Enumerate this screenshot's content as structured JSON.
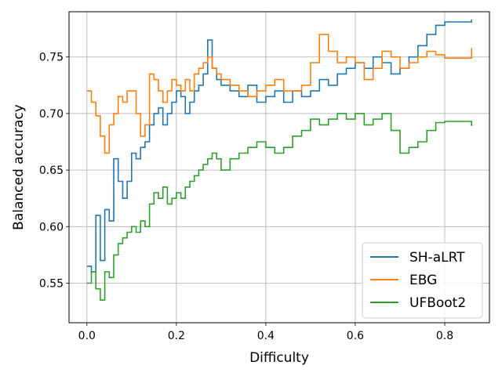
{
  "chart_data": {
    "type": "line",
    "title": "",
    "xlabel": "Difficulty",
    "ylabel": "Balanced accuracy",
    "xlim": [
      -0.04,
      0.9
    ],
    "ylim": [
      0.515,
      0.79
    ],
    "x_ticks": [
      0.0,
      0.2,
      0.4,
      0.6,
      0.8
    ],
    "x_tick_labels": [
      "0.0",
      "0.2",
      "0.4",
      "0.6",
      "0.8"
    ],
    "y_ticks": [
      0.55,
      0.6,
      0.65,
      0.7,
      0.75
    ],
    "y_tick_labels": [
      "0.55",
      "0.60",
      "0.65",
      "0.70",
      "0.75"
    ],
    "grid": true,
    "legend_position": "bottom-right",
    "series": [
      {
        "name": "SH-aLRT",
        "color": "#1f77b4",
        "x": [
          0.0,
          0.01,
          0.02,
          0.03,
          0.04,
          0.05,
          0.06,
          0.07,
          0.08,
          0.09,
          0.1,
          0.11,
          0.12,
          0.13,
          0.14,
          0.15,
          0.16,
          0.17,
          0.18,
          0.19,
          0.2,
          0.21,
          0.22,
          0.23,
          0.24,
          0.25,
          0.26,
          0.27,
          0.28,
          0.29,
          0.3,
          0.32,
          0.34,
          0.36,
          0.38,
          0.4,
          0.42,
          0.44,
          0.46,
          0.48,
          0.5,
          0.52,
          0.54,
          0.56,
          0.58,
          0.6,
          0.62,
          0.64,
          0.66,
          0.68,
          0.7,
          0.72,
          0.74,
          0.76,
          0.78,
          0.8,
          0.86
        ],
        "y": [
          0.565,
          0.56,
          0.61,
          0.57,
          0.615,
          0.605,
          0.66,
          0.64,
          0.625,
          0.64,
          0.665,
          0.66,
          0.67,
          0.675,
          0.69,
          0.7,
          0.705,
          0.69,
          0.7,
          0.71,
          0.72,
          0.715,
          0.7,
          0.71,
          0.72,
          0.725,
          0.735,
          0.765,
          0.74,
          0.73,
          0.725,
          0.72,
          0.715,
          0.725,
          0.71,
          0.715,
          0.72,
          0.71,
          0.72,
          0.715,
          0.72,
          0.73,
          0.725,
          0.735,
          0.74,
          0.745,
          0.74,
          0.75,
          0.745,
          0.735,
          0.74,
          0.75,
          0.76,
          0.77,
          0.778,
          0.781,
          0.783
        ]
      },
      {
        "name": "EBG",
        "color": "#ff7f0e",
        "x": [
          0.0,
          0.01,
          0.02,
          0.03,
          0.04,
          0.05,
          0.06,
          0.07,
          0.08,
          0.09,
          0.1,
          0.11,
          0.12,
          0.13,
          0.14,
          0.15,
          0.16,
          0.17,
          0.18,
          0.19,
          0.2,
          0.21,
          0.22,
          0.23,
          0.24,
          0.25,
          0.26,
          0.27,
          0.28,
          0.29,
          0.3,
          0.32,
          0.34,
          0.36,
          0.38,
          0.4,
          0.42,
          0.44,
          0.46,
          0.48,
          0.5,
          0.52,
          0.54,
          0.56,
          0.58,
          0.6,
          0.62,
          0.64,
          0.66,
          0.68,
          0.7,
          0.72,
          0.74,
          0.76,
          0.78,
          0.8,
          0.86
        ],
        "y": [
          0.72,
          0.71,
          0.698,
          0.68,
          0.665,
          0.69,
          0.7,
          0.715,
          0.71,
          0.72,
          0.72,
          0.7,
          0.68,
          0.69,
          0.735,
          0.73,
          0.72,
          0.71,
          0.72,
          0.73,
          0.725,
          0.72,
          0.73,
          0.72,
          0.735,
          0.74,
          0.745,
          0.75,
          0.74,
          0.735,
          0.73,
          0.725,
          0.72,
          0.715,
          0.72,
          0.725,
          0.73,
          0.72,
          0.72,
          0.725,
          0.745,
          0.77,
          0.755,
          0.745,
          0.75,
          0.745,
          0.73,
          0.74,
          0.755,
          0.75,
          0.74,
          0.745,
          0.75,
          0.755,
          0.752,
          0.749,
          0.758
        ]
      },
      {
        "name": "UFBoot2",
        "color": "#2ca02c",
        "x": [
          0.0,
          0.01,
          0.02,
          0.03,
          0.04,
          0.05,
          0.06,
          0.07,
          0.08,
          0.09,
          0.1,
          0.11,
          0.12,
          0.13,
          0.14,
          0.15,
          0.16,
          0.17,
          0.18,
          0.19,
          0.2,
          0.21,
          0.22,
          0.23,
          0.24,
          0.25,
          0.26,
          0.27,
          0.28,
          0.29,
          0.3,
          0.32,
          0.34,
          0.36,
          0.38,
          0.4,
          0.42,
          0.44,
          0.46,
          0.48,
          0.5,
          0.52,
          0.54,
          0.56,
          0.58,
          0.6,
          0.62,
          0.64,
          0.66,
          0.68,
          0.7,
          0.72,
          0.74,
          0.76,
          0.78,
          0.8,
          0.86
        ],
        "y": [
          0.55,
          0.56,
          0.545,
          0.535,
          0.56,
          0.555,
          0.575,
          0.585,
          0.59,
          0.595,
          0.6,
          0.595,
          0.605,
          0.6,
          0.62,
          0.63,
          0.625,
          0.635,
          0.62,
          0.625,
          0.63,
          0.625,
          0.635,
          0.64,
          0.645,
          0.65,
          0.655,
          0.66,
          0.665,
          0.66,
          0.65,
          0.66,
          0.665,
          0.67,
          0.675,
          0.67,
          0.665,
          0.67,
          0.68,
          0.685,
          0.695,
          0.69,
          0.695,
          0.7,
          0.695,
          0.7,
          0.69,
          0.695,
          0.7,
          0.685,
          0.665,
          0.67,
          0.675,
          0.685,
          0.692,
          0.693,
          0.689
        ]
      }
    ]
  }
}
